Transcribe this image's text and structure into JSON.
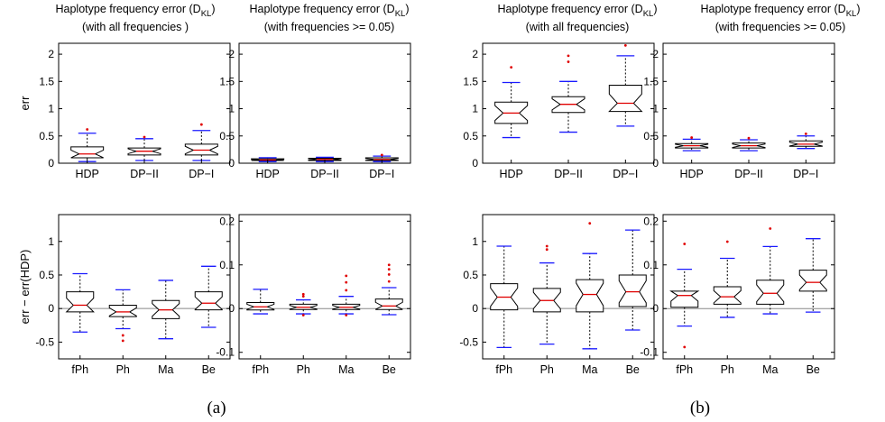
{
  "figure": {
    "captions": [
      "(a)",
      "(b)"
    ],
    "colors": {
      "axis": "#000000",
      "median": "#e00000",
      "whisker": "#000000",
      "cap": "#1a1aff",
      "outlier": "#e00000",
      "zeroline": "#888888"
    }
  },
  "chart_data": [
    {
      "type": "box",
      "panel": "a-top-left",
      "title": "Haplotype frequency error (D_KL)",
      "subtitle": "(with all frequencies )",
      "ylabel": "err",
      "ylim": [
        0,
        2.2
      ],
      "yticks": [
        0,
        0.5,
        1,
        1.5,
        2
      ],
      "notched": true,
      "categories": [
        "HDP",
        "DP−II",
        "DP−I"
      ],
      "boxes": [
        {
          "lo": 0.03,
          "q1": 0.1,
          "med": 0.17,
          "q3": 0.3,
          "hi": 0.55,
          "outliers": [
            0.62
          ]
        },
        {
          "lo": 0.05,
          "q1": 0.15,
          "med": 0.22,
          "q3": 0.28,
          "hi": 0.45,
          "outliers": [
            0.48
          ]
        },
        {
          "lo": 0.05,
          "q1": 0.15,
          "med": 0.24,
          "q3": 0.35,
          "hi": 0.6,
          "outliers": [
            0.71
          ]
        }
      ]
    },
    {
      "type": "box",
      "panel": "a-top-right",
      "title": "Haplotype frequency error (D_KL)",
      "subtitle": "(with frequencies >= 0.05)",
      "ylabel": "",
      "ylim": [
        0,
        2.2
      ],
      "yticks": [
        0,
        0.5,
        1,
        1.5,
        2
      ],
      "notched": true,
      "categories": [
        "HDP",
        "DP−II",
        "DP−I"
      ],
      "boxes": [
        {
          "lo": 0.03,
          "q1": 0.05,
          "med": 0.06,
          "q3": 0.08,
          "hi": 0.1,
          "outliers": []
        },
        {
          "lo": 0.03,
          "q1": 0.05,
          "med": 0.07,
          "q3": 0.09,
          "hi": 0.11,
          "outliers": []
        },
        {
          "lo": 0.03,
          "q1": 0.05,
          "med": 0.07,
          "q3": 0.1,
          "hi": 0.13,
          "outliers": [
            0.15
          ]
        }
      ]
    },
    {
      "type": "box",
      "panel": "b-top-left",
      "title": "Haplotype frequency error (D_KL)",
      "subtitle": "(with all frequencies)",
      "ylabel": "",
      "ylim": [
        0,
        2.2
      ],
      "yticks": [
        0,
        0.5,
        1,
        1.5,
        2
      ],
      "notched": true,
      "categories": [
        "HDP",
        "DP−II",
        "DP−I"
      ],
      "boxes": [
        {
          "lo": 0.47,
          "q1": 0.73,
          "med": 0.92,
          "q3": 1.12,
          "hi": 1.48,
          "outliers": [
            1.76
          ]
        },
        {
          "lo": 0.57,
          "q1": 0.93,
          "med": 1.08,
          "q3": 1.22,
          "hi": 1.5,
          "outliers": [
            1.86,
            1.97
          ]
        },
        {
          "lo": 0.68,
          "q1": 0.95,
          "med": 1.1,
          "q3": 1.43,
          "hi": 1.97,
          "outliers": [
            2.16
          ]
        }
      ]
    },
    {
      "type": "box",
      "panel": "b-top-right",
      "title": "Haplotype frequency error (D_KL)",
      "subtitle": "(with frequencies >= 0.05)",
      "ylabel": "",
      "ylim": [
        0,
        2.2
      ],
      "yticks": [
        0,
        0.5,
        1,
        1.5,
        2
      ],
      "notched": true,
      "categories": [
        "HDP",
        "DP−II",
        "DP−I"
      ],
      "boxes": [
        {
          "lo": 0.23,
          "q1": 0.28,
          "med": 0.32,
          "q3": 0.36,
          "hi": 0.44,
          "outliers": [
            0.47
          ]
        },
        {
          "lo": 0.23,
          "q1": 0.28,
          "med": 0.32,
          "q3": 0.37,
          "hi": 0.43,
          "outliers": [
            0.46
          ]
        },
        {
          "lo": 0.27,
          "q1": 0.31,
          "med": 0.35,
          "q3": 0.41,
          "hi": 0.5,
          "outliers": [
            0.54
          ]
        }
      ]
    },
    {
      "type": "box",
      "panel": "a-bottom-left",
      "title": "",
      "subtitle": "",
      "ylabel": "err − err(HDP)",
      "ylim": [
        -0.75,
        1.4
      ],
      "yticks": [
        -0.5,
        0,
        0.5,
        1
      ],
      "zeroline": 0,
      "notched": true,
      "categories": [
        "fPh",
        "Ph",
        "Ma",
        "Be"
      ],
      "boxes": [
        {
          "lo": -0.35,
          "q1": -0.05,
          "med": 0.05,
          "q3": 0.25,
          "hi": 0.52,
          "outliers": []
        },
        {
          "lo": -0.3,
          "q1": -0.12,
          "med": -0.05,
          "q3": 0.05,
          "hi": 0.28,
          "outliers": [
            -0.4,
            -0.48
          ]
        },
        {
          "lo": -0.45,
          "q1": -0.15,
          "med": -0.02,
          "q3": 0.12,
          "hi": 0.42,
          "outliers": []
        },
        {
          "lo": -0.28,
          "q1": -0.02,
          "med": 0.08,
          "q3": 0.25,
          "hi": 0.63,
          "outliers": []
        }
      ]
    },
    {
      "type": "box",
      "panel": "a-bottom-right",
      "title": "",
      "subtitle": "",
      "ylabel": "",
      "ylim": [
        -0.115,
        0.215
      ],
      "yticks": [
        -0.1,
        0,
        0.1,
        0.2
      ],
      "zeroline": 0,
      "notched": true,
      "categories": [
        "fPh",
        "Ph",
        "Ma",
        "Be"
      ],
      "boxes": [
        {
          "lo": -0.012,
          "q1": -0.003,
          "med": 0.004,
          "q3": 0.014,
          "hi": 0.044,
          "outliers": []
        },
        {
          "lo": -0.012,
          "q1": -0.002,
          "med": 0.003,
          "q3": 0.01,
          "hi": 0.02,
          "outliers": [
            0.028,
            0.033,
            -0.015
          ]
        },
        {
          "lo": -0.012,
          "q1": -0.002,
          "med": 0.003,
          "q3": 0.01,
          "hi": 0.028,
          "outliers": [
            0.042,
            0.06,
            0.075,
            -0.015
          ]
        },
        {
          "lo": -0.014,
          "q1": -0.002,
          "med": 0.006,
          "q3": 0.022,
          "hi": 0.048,
          "outliers": [
            0.062,
            0.078,
            0.09,
            0.1
          ]
        }
      ]
    },
    {
      "type": "box",
      "panel": "b-bottom-left",
      "title": "",
      "subtitle": "",
      "ylabel": "",
      "ylim": [
        -0.75,
        1.4
      ],
      "yticks": [
        -0.5,
        0,
        0.5,
        1
      ],
      "zeroline": 0,
      "notched": true,
      "categories": [
        "fPh",
        "Ph",
        "Ma",
        "Be"
      ],
      "boxes": [
        {
          "lo": -0.58,
          "q1": -0.02,
          "med": 0.17,
          "q3": 0.37,
          "hi": 0.93,
          "outliers": []
        },
        {
          "lo": -0.53,
          "q1": -0.05,
          "med": 0.12,
          "q3": 0.3,
          "hi": 0.68,
          "outliers": [
            0.88,
            0.93
          ]
        },
        {
          "lo": -0.6,
          "q1": -0.05,
          "med": 0.21,
          "q3": 0.43,
          "hi": 0.82,
          "outliers": [
            1.27
          ]
        },
        {
          "lo": -0.32,
          "q1": 0.03,
          "med": 0.25,
          "q3": 0.5,
          "hi": 1.17,
          "outliers": []
        }
      ]
    },
    {
      "type": "box",
      "panel": "b-bottom-right",
      "title": "",
      "subtitle": "",
      "ylabel": "",
      "ylim": [
        -0.115,
        0.215
      ],
      "yticks": [
        -0.1,
        0,
        0.1,
        0.2
      ],
      "zeroline": 0,
      "notched": true,
      "categories": [
        "fPh",
        "Ph",
        "Ma",
        "Be"
      ],
      "boxes": [
        {
          "lo": -0.04,
          "q1": 0.003,
          "med": 0.03,
          "q3": 0.04,
          "hi": 0.09,
          "outliers": [
            0.148,
            -0.088
          ]
        },
        {
          "lo": -0.02,
          "q1": 0.01,
          "med": 0.027,
          "q3": 0.05,
          "hi": 0.115,
          "outliers": [
            0.153
          ]
        },
        {
          "lo": -0.012,
          "q1": 0.01,
          "med": 0.035,
          "q3": 0.065,
          "hi": 0.142,
          "outliers": [
            0.183
          ]
        },
        {
          "lo": -0.008,
          "q1": 0.04,
          "med": 0.06,
          "q3": 0.088,
          "hi": 0.16,
          "outliers": []
        }
      ]
    }
  ]
}
